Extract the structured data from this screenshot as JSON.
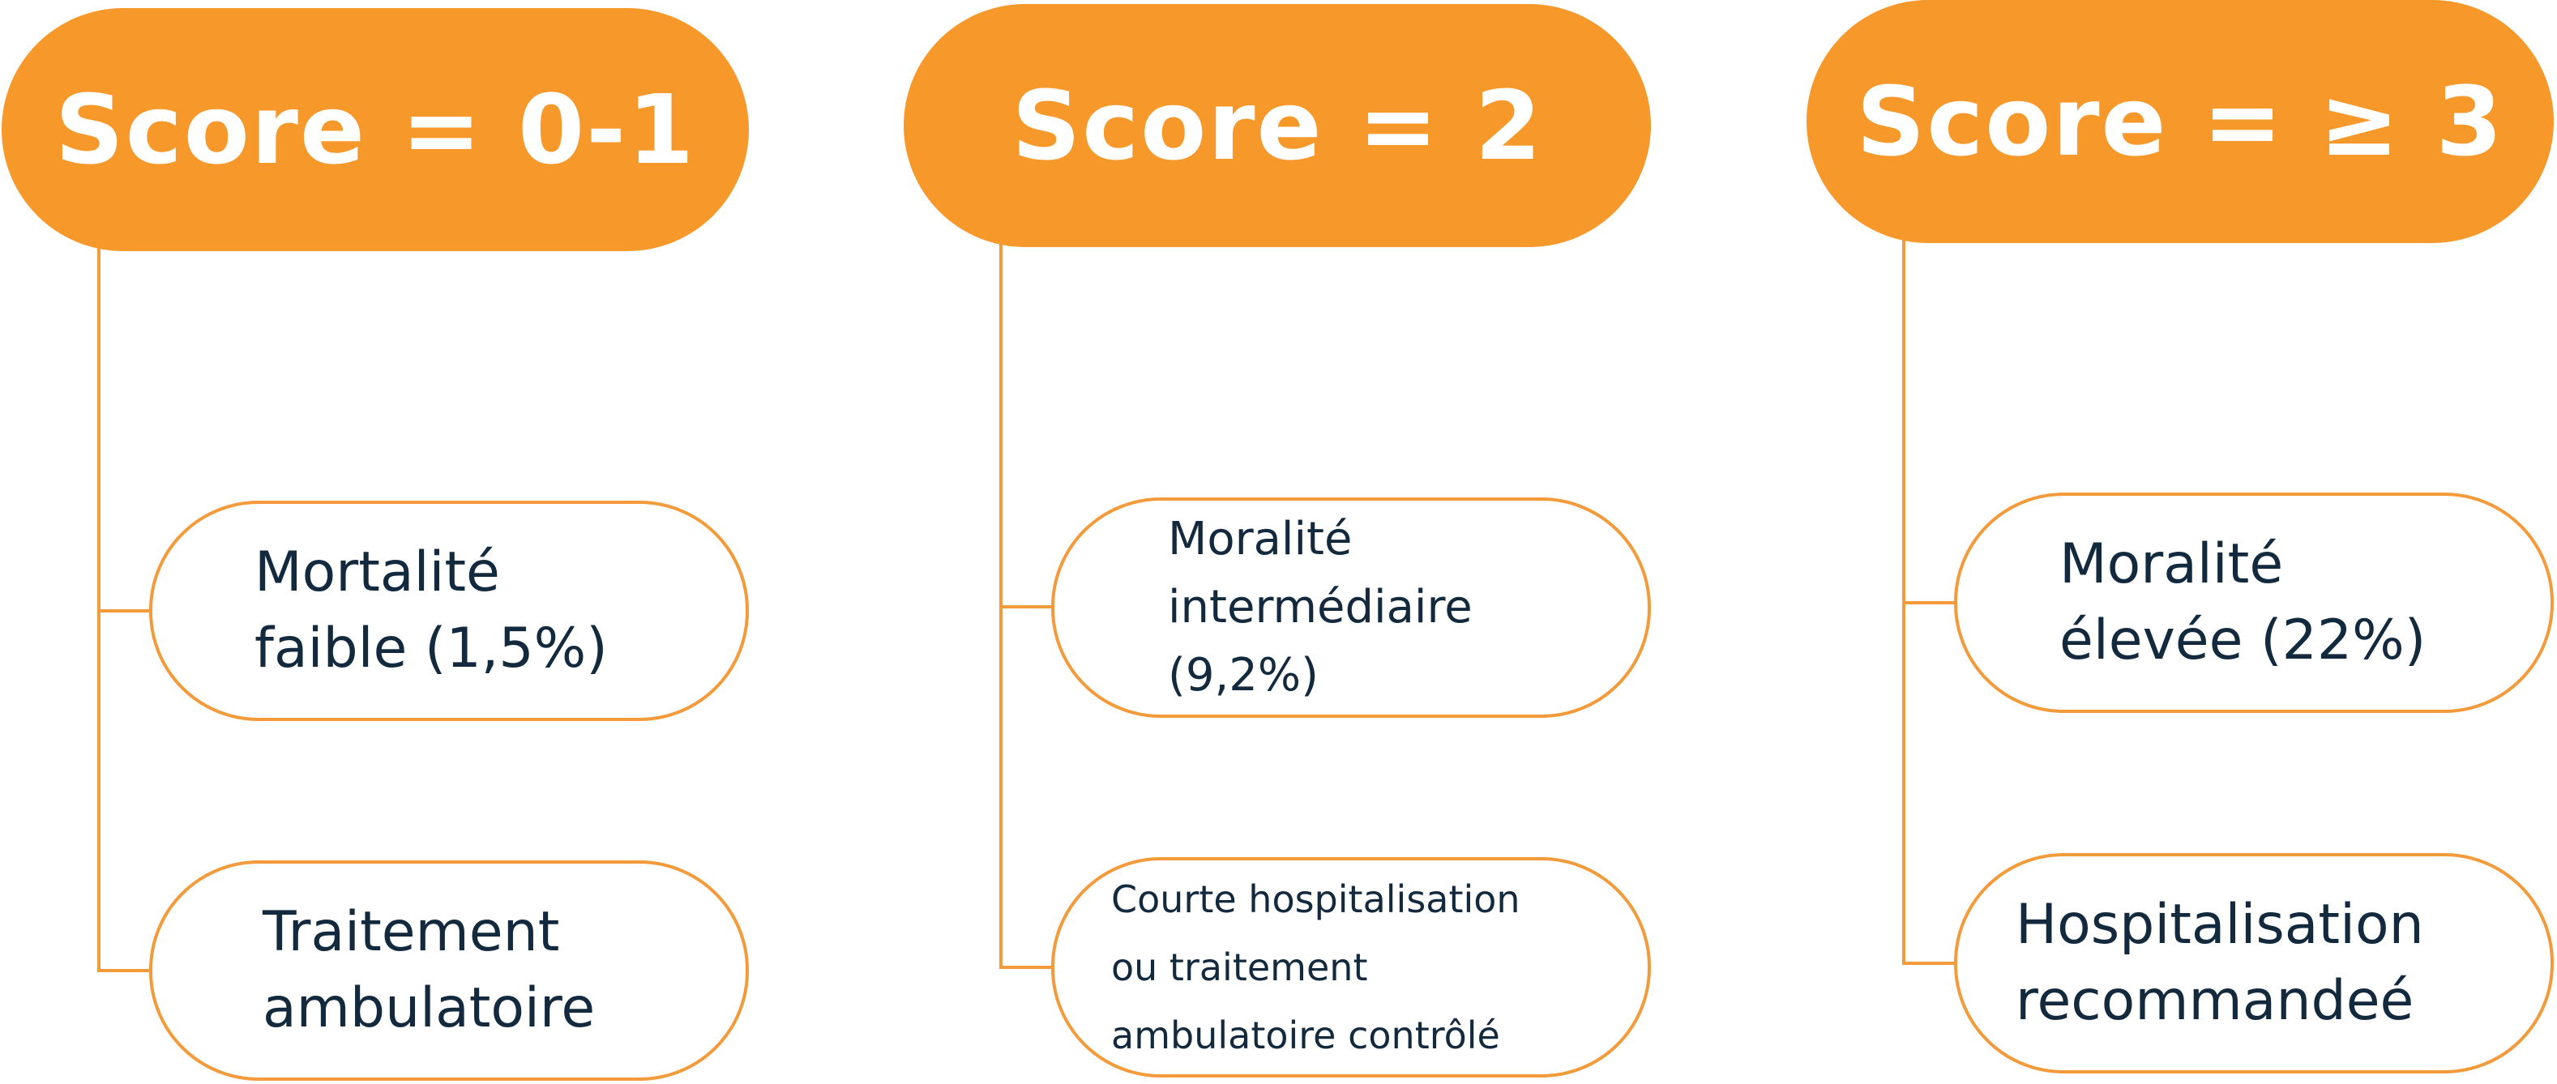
{
  "colors": {
    "accent": "#F7982A",
    "connector": "#F39A3A",
    "text": "#13293D",
    "header_text": "#FFFFFF"
  },
  "columns": [
    {
      "header": "Score = 0-1",
      "mortality": "Mortalité\nfaible (1,5%)",
      "treatment": "Traitement\nambulatoire"
    },
    {
      "header": "Score = 2",
      "mortality": "Moralité\nintermédiaire\n(9,2%)",
      "treatment": "Courte hospitalisation\nou traitement\nambulatoire contrôlé"
    },
    {
      "header": "Score = ≥ 3",
      "mortality": "Moralité\nélevée (22%)",
      "treatment": "Hospitalisation\nrecommandeé"
    }
  ]
}
